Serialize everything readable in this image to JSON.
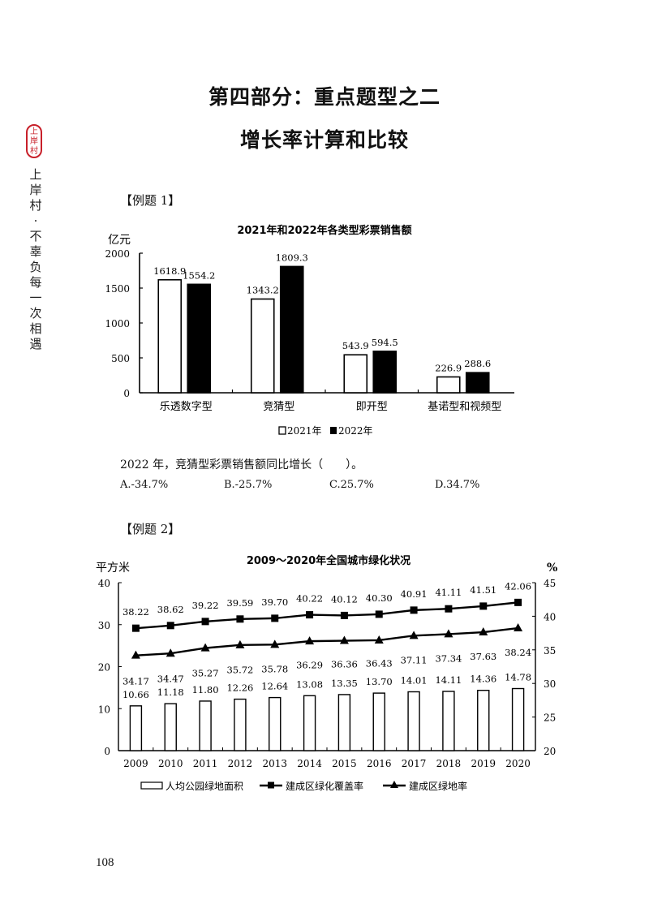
{
  "header": {
    "title_line1": "第四部分：重点题型之二",
    "title_line2": "增长率计算和比较"
  },
  "side_brand": {
    "seal_text": [
      "上",
      "岸",
      "村"
    ],
    "seal_color": "#c8202a",
    "slogan_chars": [
      "上",
      "岸",
      "村",
      "·",
      "不",
      "辜",
      "负",
      "每",
      "一",
      "次",
      "相",
      "遇"
    ]
  },
  "example1": {
    "label": "【例题 1】",
    "question": "2022 年，竞猜型彩票销售额同比增长（　　）。",
    "options": [
      "A.-34.7%",
      "B.-25.7%",
      "C.25.7%",
      "D.34.7%"
    ]
  },
  "example2": {
    "label": "【例题 2】"
  },
  "page_number": "108",
  "chart_data": [
    {
      "type": "bar",
      "title": "2021年和2022年各类型彩票销售额",
      "ylabel": "亿元",
      "xlabel": "",
      "ylim": [
        0,
        2000
      ],
      "yticks": [
        "0",
        "500",
        "1000",
        "1500",
        "2000"
      ],
      "categories": [
        "乐透数字型",
        "竞猜型",
        "即开型",
        "基诺型和视频型"
      ],
      "series": [
        {
          "name": "2021年",
          "style": "white-fill",
          "values": [
            1618.9,
            1343.2,
            543.9,
            226.9
          ],
          "labels": [
            "1618.9",
            "1343.2",
            "543.9",
            "226.9"
          ]
        },
        {
          "name": "2022年",
          "style": "black-fill",
          "values": [
            1554.2,
            1809.3,
            594.5,
            288.6
          ],
          "labels": [
            "1554.2",
            "1809.3",
            "594.5",
            "288.6"
          ]
        }
      ],
      "legend": [
        "□2021年",
        "■2022年"
      ],
      "legend_position": "bottom",
      "grid": false
    },
    {
      "type": "bar+line",
      "title": "2009～2020年全国城市绿化状况",
      "ylabel_left": "平方米",
      "ylabel_right": "%",
      "ylim_left": [
        0,
        40
      ],
      "ylim_right": [
        20,
        45
      ],
      "yticks_left": [
        "0",
        "10",
        "20",
        "30",
        "40"
      ],
      "yticks_right": [
        "20",
        "25",
        "30",
        "35",
        "40",
        "45"
      ],
      "categories": [
        "2009",
        "2010",
        "2011",
        "2012",
        "2013",
        "2014",
        "2015",
        "2016",
        "2017",
        "2018",
        "2019",
        "2020"
      ],
      "series": [
        {
          "name": "人均公园绿地面积",
          "type": "bar",
          "axis": "left",
          "values": [
            10.66,
            11.18,
            11.8,
            12.26,
            12.64,
            13.08,
            13.35,
            13.7,
            14.01,
            14.11,
            14.36,
            14.78
          ],
          "labels": [
            "10.66",
            "11.18",
            "11.80",
            "12.26",
            "12.64",
            "13.08",
            "13.35",
            "13.70",
            "14.01",
            "14.11",
            "14.36",
            "14.78"
          ]
        },
        {
          "name": "建成区绿化覆盖率",
          "type": "line",
          "marker": "square",
          "axis": "right",
          "values": [
            38.22,
            38.62,
            39.22,
            39.59,
            39.7,
            40.22,
            40.12,
            40.3,
            40.91,
            41.11,
            41.51,
            42.06
          ],
          "labels": [
            "38.22",
            "38.62",
            "39.22",
            "39.59",
            "39.70",
            "40.22",
            "40.12",
            "40.30",
            "40.91",
            "41.11",
            "41.51",
            "42.06"
          ]
        },
        {
          "name": "建成区绿地率",
          "type": "line",
          "marker": "triangle",
          "axis": "right",
          "values": [
            34.17,
            34.47,
            35.27,
            35.72,
            35.78,
            36.29,
            36.36,
            36.43,
            37.11,
            37.34,
            37.63,
            38.24
          ],
          "labels": [
            "34.17",
            "34.47",
            "35.27",
            "35.72",
            "35.78",
            "36.29",
            "36.36",
            "36.43",
            "37.11",
            "37.34",
            "37.63",
            "38.24"
          ]
        }
      ],
      "legend": [
        "人均公园绿地面积",
        "建成区绿化覆盖率",
        "建成区绿地率"
      ],
      "legend_position": "bottom",
      "grid": false
    }
  ]
}
